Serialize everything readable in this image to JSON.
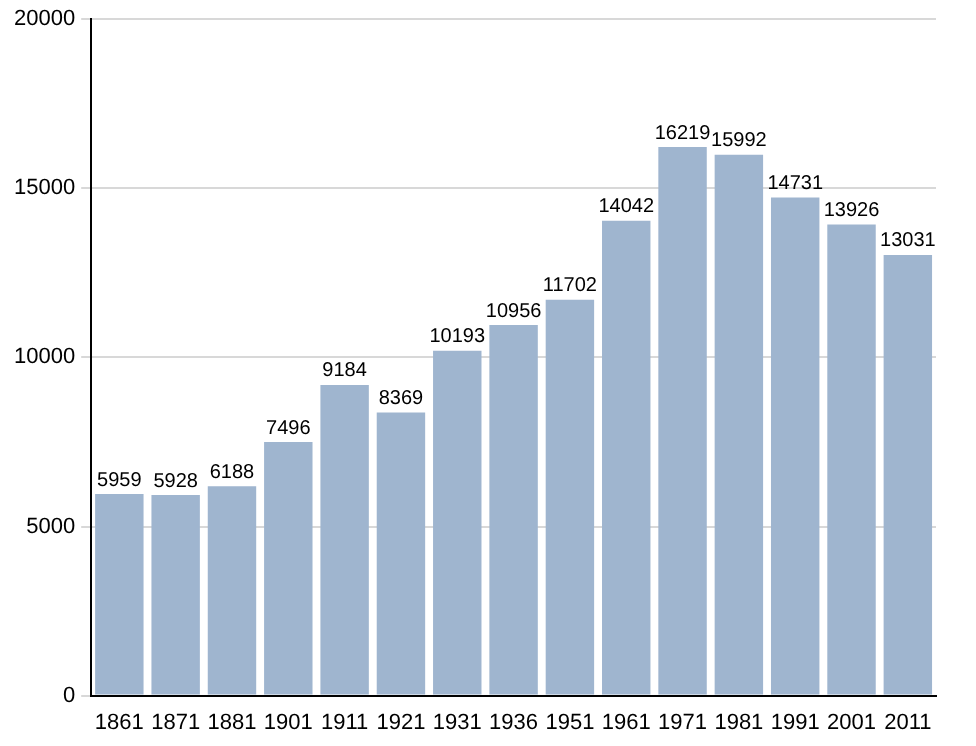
{
  "chart_data": {
    "type": "bar",
    "categories": [
      "1861",
      "1871",
      "1881",
      "1901",
      "1911",
      "1921",
      "1931",
      "1936",
      "1951",
      "1961",
      "1971",
      "1981",
      "1991",
      "2001",
      "2011"
    ],
    "values": [
      5959,
      5928,
      6188,
      7496,
      9184,
      8369,
      10193,
      10956,
      11702,
      14042,
      16219,
      15992,
      14731,
      13926,
      13031
    ],
    "color": "#9fb5cf",
    "ylim": [
      0,
      20000
    ],
    "yticks": [
      0,
      5000,
      10000,
      15000,
      20000
    ],
    "grid": "y",
    "data_labels": true
  }
}
